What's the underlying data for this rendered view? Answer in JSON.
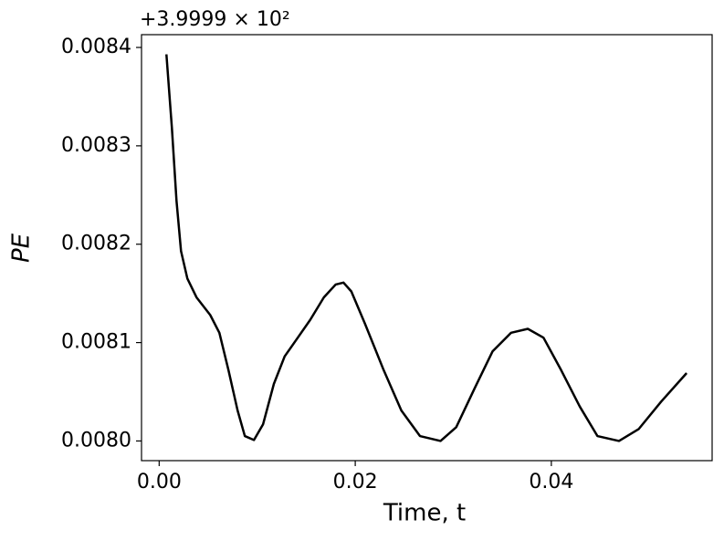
{
  "chart_data": {
    "type": "line",
    "x_label": "Time, t",
    "y_label": "PE",
    "offset_text": "+3.9999 × 10²",
    "x": [
      0.00074,
      0.0013,
      0.00177,
      0.00223,
      0.00288,
      0.00381,
      0.00521,
      0.00614,
      0.00707,
      0.008,
      0.00874,
      0.00967,
      0.0106,
      0.0117,
      0.0128,
      0.014,
      0.0154,
      0.0168,
      0.018,
      0.0188,
      0.0196,
      0.021,
      0.0229,
      0.0247,
      0.0266,
      0.0287,
      0.0303,
      0.0322,
      0.034,
      0.0359,
      0.0376,
      0.0392,
      0.041,
      0.0429,
      0.0447,
      0.0469,
      0.0489,
      0.0512,
      0.0538
    ],
    "series": [
      {
        "color": "#000000",
        "values": [
          0.008393,
          0.008318,
          0.008244,
          0.008193,
          0.008165,
          0.008146,
          0.008128,
          0.00811,
          0.008072,
          0.008031,
          0.008005,
          0.008001,
          0.008017,
          0.008058,
          0.008086,
          0.008103,
          0.008123,
          0.008146,
          0.008159,
          0.008161,
          0.008152,
          0.008119,
          0.008072,
          0.008031,
          0.008005,
          0.008,
          0.008014,
          0.008054,
          0.008091,
          0.00811,
          0.008114,
          0.008105,
          0.008072,
          0.008035,
          0.008005,
          0.008,
          0.008012,
          0.00804,
          0.008069
        ]
      }
    ],
    "xlim": [
      -0.0018,
      0.0564
    ],
    "ylim": [
      0.00798,
      0.008413
    ],
    "xticks": [
      {
        "value": 0,
        "label": "0.00"
      },
      0.02,
      0.04
    ],
    "yticks": [
      {
        "value": 0.008,
        "label": "0.0080"
      },
      0.0081,
      0.0082,
      0.0083,
      0.0084
    ],
    "grid": false
  }
}
